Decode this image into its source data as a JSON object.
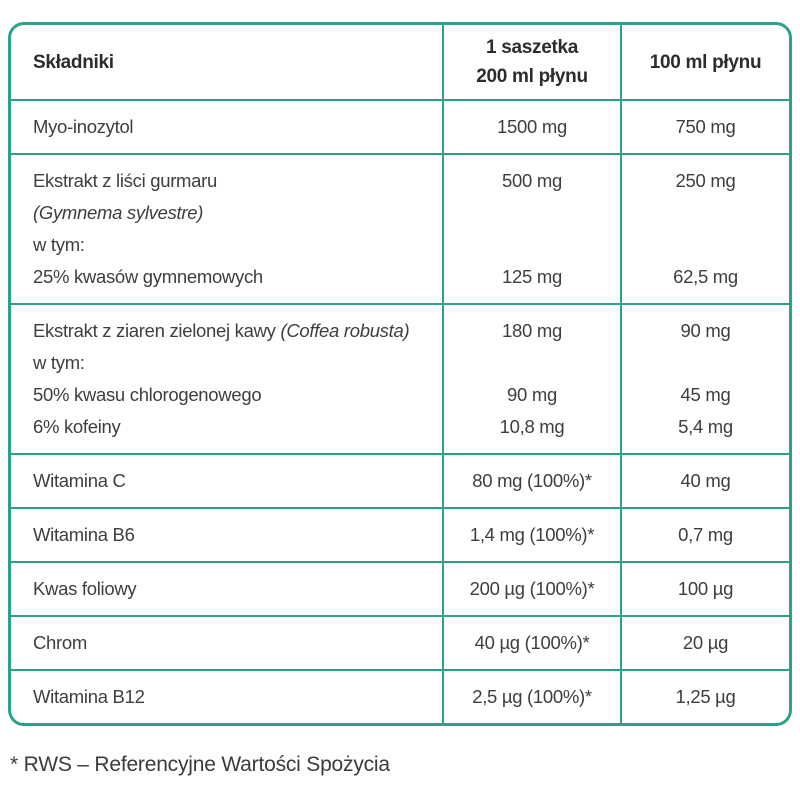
{
  "accent_color": "#2aa28b",
  "text_color": "#3e3e3e",
  "table": {
    "col_skladniki": "Składniki",
    "col_saszetka_line1": "1 saszetka",
    "col_saszetka_line2": "200 ml płynu",
    "col_100ml": "100 ml płynu",
    "rows": [
      {
        "name_lines": [
          [
            {
              "t": "Myo-inozytol"
            }
          ]
        ],
        "per_200ml": [
          "1500 mg"
        ],
        "per_100ml": [
          "750 mg"
        ]
      },
      {
        "name_lines": [
          [
            {
              "t": "Ekstrakt z liści gurmaru"
            }
          ],
          [
            {
              "t": "(Gymnema sylvestre)",
              "i": true
            }
          ],
          [
            {
              "t": "w tym:"
            }
          ],
          [
            {
              "t": "25% kwasów gymnemowych"
            }
          ]
        ],
        "per_200ml": [
          "500 mg",
          "",
          "",
          "125 mg"
        ],
        "per_100ml": [
          "250 mg",
          "",
          "",
          "62,5 mg"
        ]
      },
      {
        "name_lines": [
          [
            {
              "t": "Ekstrakt z ziaren zielonej kawy "
            },
            {
              "t": "(Coffea robusta)",
              "i": true
            }
          ],
          [
            {
              "t": "w tym:"
            }
          ],
          [
            {
              "t": "50% kwasu chlorogenowego"
            }
          ],
          [
            {
              "t": "6% kofeiny"
            }
          ]
        ],
        "per_200ml": [
          "180 mg",
          "",
          "90 mg",
          "10,8 mg"
        ],
        "per_100ml": [
          "90 mg",
          "",
          "45 mg",
          "5,4 mg"
        ]
      },
      {
        "name_lines": [
          [
            {
              "t": "Witamina C"
            }
          ]
        ],
        "per_200ml": [
          "80 mg (100%)*"
        ],
        "per_100ml": [
          "40 mg"
        ]
      },
      {
        "name_lines": [
          [
            {
              "t": "Witamina B6"
            }
          ]
        ],
        "per_200ml": [
          "1,4 mg (100%)*"
        ],
        "per_100ml": [
          "0,7 mg"
        ]
      },
      {
        "name_lines": [
          [
            {
              "t": "Kwas foliowy"
            }
          ]
        ],
        "per_200ml": [
          "200 µg (100%)*"
        ],
        "per_100ml": [
          "100 µg"
        ]
      },
      {
        "name_lines": [
          [
            {
              "t": "Chrom"
            }
          ]
        ],
        "per_200ml": [
          "40 µg (100%)*"
        ],
        "per_100ml": [
          "20 µg"
        ]
      },
      {
        "name_lines": [
          [
            {
              "t": "Witamina B12"
            }
          ]
        ],
        "per_200ml": [
          "2,5 µg (100%)*"
        ],
        "per_100ml": [
          "1,25 µg"
        ]
      }
    ]
  },
  "footnote": "* RWS – Referencyjne Wartości Spożycia"
}
